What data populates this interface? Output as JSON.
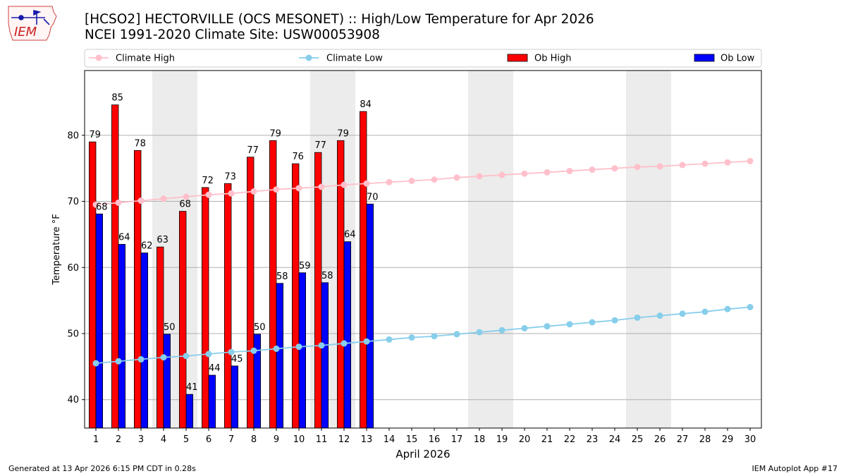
{
  "logo": {
    "text": "IEM",
    "icon": "iem-iowa-logo"
  },
  "header": {
    "title_line1": "[HCSO2] HECTORVILLE (OCS MESONET) :: High/Low Temperature for Apr 2026",
    "title_line2": "NCEI 1991-2020 Climate Site: USW00053908"
  },
  "footer": {
    "left": "Generated at 13 Apr 2026 6:15 PM CDT in 0.28s",
    "right": "IEM Autoplot App #17"
  },
  "colors": {
    "ob_high": "#ff0000",
    "ob_low": "#0000ff",
    "climate_high": "#ffc0cb",
    "climate_low": "#87ceeb",
    "weekend_shade": "#ececec",
    "grid": "#b0b0b0"
  },
  "chart_data": {
    "type": "bar",
    "xlabel": "April 2026",
    "ylabel": "Temperature °F",
    "xlim": [
      0.5,
      30.5
    ],
    "ylim": [
      35.7,
      89.8
    ],
    "yticks": [
      40,
      50,
      60,
      70,
      80
    ],
    "grid": "horizontal",
    "legend_position": "top",
    "days": [
      1,
      2,
      3,
      4,
      5,
      6,
      7,
      8,
      9,
      10,
      11,
      12,
      13,
      14,
      15,
      16,
      17,
      18,
      19,
      20,
      21,
      22,
      23,
      24,
      25,
      26,
      27,
      28,
      29,
      30
    ],
    "weekend_days": [
      4,
      5,
      11,
      12,
      18,
      19,
      25,
      26
    ],
    "series": [
      {
        "name": "Climate High",
        "kind": "line",
        "values": [
          69.5,
          69.8,
          70.1,
          70.4,
          70.7,
          71.0,
          71.2,
          71.5,
          71.8,
          72.0,
          72.2,
          72.5,
          72.7,
          72.9,
          73.1,
          73.3,
          73.6,
          73.8,
          74.0,
          74.2,
          74.4,
          74.6,
          74.8,
          75.0,
          75.2,
          75.3,
          75.5,
          75.7,
          75.9,
          76.1
        ]
      },
      {
        "name": "Climate Low",
        "kind": "line",
        "values": [
          45.5,
          45.8,
          46.1,
          46.4,
          46.6,
          46.9,
          47.2,
          47.4,
          47.7,
          48.0,
          48.2,
          48.5,
          48.8,
          49.1,
          49.4,
          49.6,
          49.9,
          50.2,
          50.5,
          50.8,
          51.1,
          51.4,
          51.7,
          52.0,
          52.4,
          52.7,
          53.0,
          53.3,
          53.7,
          54.0
        ]
      },
      {
        "name": "Ob High",
        "kind": "bar",
        "values": [
          79,
          84.6,
          77.7,
          63.1,
          68.5,
          72.1,
          72.7,
          76.7,
          79.2,
          75.7,
          77.4,
          79.2,
          83.6
        ],
        "labels": [
          "79",
          "85",
          "78",
          "63",
          "68",
          "72",
          "73",
          "77",
          "79",
          "76",
          "77",
          "79",
          "84"
        ]
      },
      {
        "name": "Ob Low",
        "kind": "bar",
        "values": [
          68.1,
          63.5,
          62.2,
          49.9,
          40.8,
          43.7,
          45.1,
          49.9,
          57.6,
          59.2,
          57.7,
          63.9,
          69.6
        ],
        "labels": [
          "68",
          "64",
          "62",
          "50",
          "41",
          "44",
          "45",
          "50",
          "58",
          "59",
          "58",
          "64",
          "70"
        ]
      }
    ]
  }
}
